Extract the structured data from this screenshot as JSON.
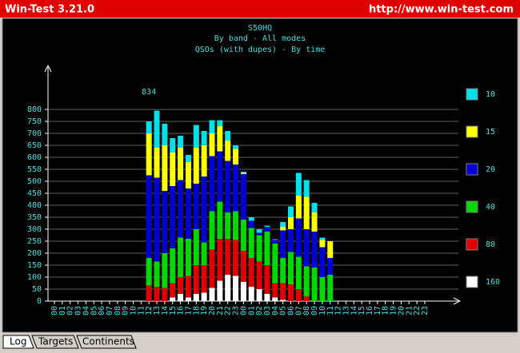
{
  "window": {
    "title": "Win-Test 3.21.0",
    "url": "http://www.win-test.com"
  },
  "tabs": [
    "Log",
    "Targets",
    "Continents"
  ],
  "chart_data": {
    "type": "bar",
    "stacked": true,
    "title": "S50HQ",
    "subtitle": "By band - All modes",
    "subtitle2": "QSOs (with dupes) - By time",
    "annotations": [
      "834"
    ],
    "categories": [
      "00",
      "01",
      "02",
      "03",
      "04",
      "05",
      "06",
      "07",
      "08",
      "09",
      "10",
      "11",
      "12",
      "13",
      "14",
      "15",
      "16",
      "17",
      "18",
      "19",
      "20",
      "21",
      "22",
      "23",
      "00",
      "01",
      "02",
      "03",
      "04",
      "05",
      "06",
      "07",
      "08",
      "09",
      "10",
      "11",
      "12",
      "13",
      "14",
      "15",
      "16",
      "17",
      "18",
      "19",
      "20",
      "21",
      "22",
      "23"
    ],
    "ylim": [
      0,
      800
    ],
    "yticks": [
      0,
      50,
      100,
      150,
      200,
      250,
      300,
      350,
      400,
      450,
      500,
      550,
      600,
      650,
      700,
      750,
      800
    ],
    "grid": true,
    "series": [
      {
        "name": "160",
        "color": "#ffffff",
        "values": [
          0,
          0,
          0,
          0,
          0,
          0,
          0,
          0,
          0,
          0,
          0,
          0,
          0,
          0,
          0,
          15,
          30,
          15,
          30,
          35,
          55,
          85,
          110,
          105,
          80,
          60,
          50,
          30,
          15,
          5,
          0,
          0,
          0,
          0,
          0,
          0,
          0,
          0,
          0,
          0,
          0,
          0,
          0,
          0,
          0,
          0,
          0,
          0
        ]
      },
      {
        "name": "80",
        "color": "#e00000",
        "values": [
          0,
          0,
          0,
          0,
          0,
          0,
          0,
          0,
          0,
          0,
          0,
          0,
          65,
          60,
          55,
          60,
          70,
          90,
          120,
          115,
          160,
          175,
          150,
          150,
          130,
          120,
          115,
          120,
          60,
          70,
          70,
          50,
          20,
          0,
          0,
          0,
          0,
          0,
          0,
          0,
          0,
          0,
          0,
          0,
          0,
          0,
          0,
          0
        ]
      },
      {
        "name": "40",
        "color": "#00d800",
        "values": [
          0,
          0,
          0,
          0,
          0,
          0,
          0,
          0,
          0,
          0,
          0,
          0,
          115,
          105,
          145,
          145,
          165,
          155,
          150,
          95,
          160,
          155,
          110,
          120,
          130,
          125,
          110,
          140,
          165,
          105,
          135,
          135,
          125,
          140,
          100,
          110,
          0,
          0,
          0,
          0,
          0,
          0,
          0,
          0,
          0,
          0,
          0,
          0
        ]
      },
      {
        "name": "20",
        "color": "#0000d0",
        "values": [
          0,
          0,
          0,
          0,
          0,
          0,
          0,
          0,
          0,
          0,
          0,
          0,
          345,
          350,
          260,
          260,
          240,
          210,
          190,
          275,
          230,
          210,
          215,
          195,
          190,
          30,
          10,
          20,
          15,
          115,
          95,
          160,
          155,
          150,
          125,
          70,
          0,
          0,
          0,
          0,
          0,
          0,
          0,
          0,
          0,
          0,
          0,
          0
        ]
      },
      {
        "name": "15",
        "color": "#ffff00",
        "values": [
          0,
          0,
          0,
          0,
          0,
          0,
          0,
          0,
          0,
          0,
          0,
          0,
          175,
          125,
          190,
          140,
          135,
          110,
          150,
          130,
          95,
          105,
          85,
          65,
          5,
          0,
          0,
          0,
          0,
          15,
          50,
          95,
          135,
          80,
          30,
          70,
          0,
          0,
          0,
          0,
          0,
          0,
          0,
          0,
          0,
          0,
          0,
          0
        ]
      },
      {
        "name": "10",
        "color": "#00e0e8",
        "values": [
          0,
          0,
          0,
          0,
          0,
          0,
          0,
          0,
          0,
          0,
          0,
          0,
          50,
          155,
          90,
          60,
          50,
          30,
          95,
          60,
          55,
          25,
          40,
          15,
          5,
          15,
          15,
          5,
          3,
          20,
          45,
          95,
          70,
          40,
          10,
          0,
          0,
          0,
          0,
          0,
          0,
          0,
          0,
          0,
          0,
          0,
          0,
          0
        ]
      }
    ]
  }
}
